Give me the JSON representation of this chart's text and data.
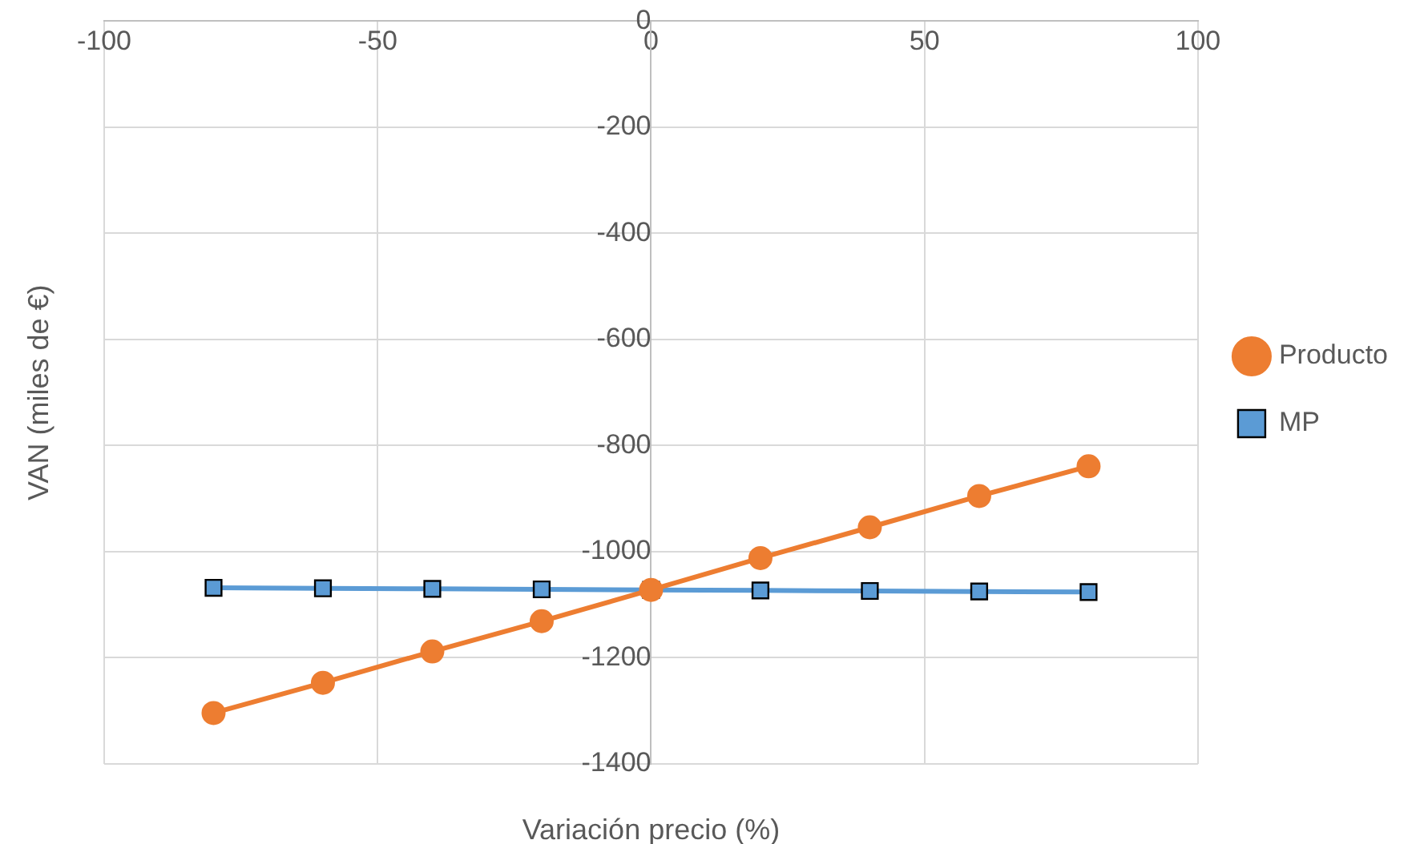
{
  "chart_data": {
    "type": "line",
    "xlabel": "Variación precio (%)",
    "ylabel": "VAN (miles de €)",
    "x": [
      -80,
      -60,
      -40,
      -20,
      0,
      20,
      40,
      60,
      80
    ],
    "series": [
      {
        "name": "MP",
        "color": "#5b9bd5",
        "marker": "square",
        "values": [
          -1068,
          -1069,
          -1070,
          -1071,
          -1072,
          -1073,
          -1074,
          -1075,
          -1076
        ]
      },
      {
        "name": "Producto",
        "color": "#ed7d31",
        "marker": "circle",
        "values": [
          -1304,
          -1247,
          -1188,
          -1131,
          -1072,
          -1012,
          -954,
          -895,
          -839
        ]
      }
    ],
    "xlim": [
      -100,
      100
    ],
    "xticks": [
      -100,
      -50,
      0,
      50,
      100
    ],
    "ylim": [
      -1400,
      0
    ],
    "yticks": [
      -1400,
      -1200,
      -1000,
      -800,
      -600,
      -400,
      -200,
      0
    ],
    "grid": true,
    "legend": "right"
  }
}
